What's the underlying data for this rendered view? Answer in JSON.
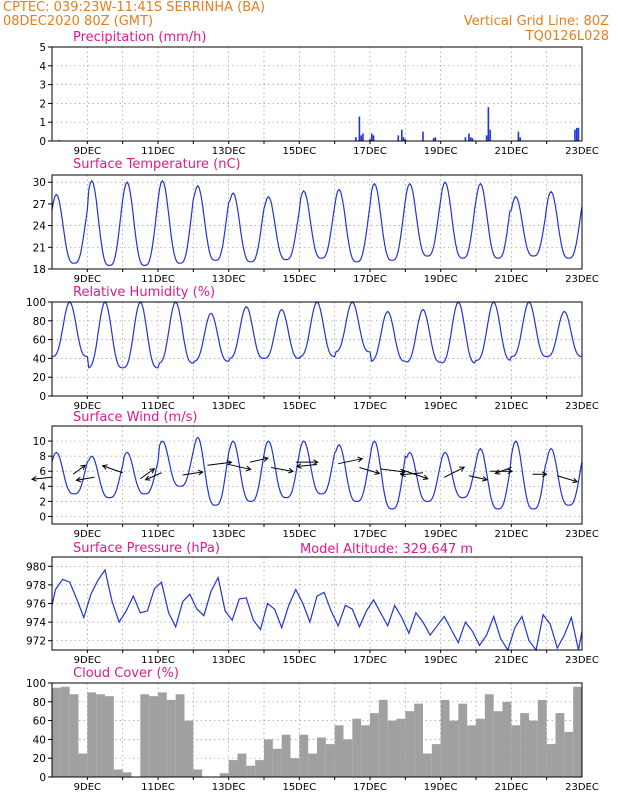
{
  "header": {
    "line1": "CPTEC:   039:23W-11:41S   SERRINHA (BA)",
    "line2": "08DEC2020 80Z (GMT)",
    "grid_note": "Vertical Grid Line: 80Z",
    "model_code": "TQ0126L028",
    "model_altitude": "Model Altitude: 329.647 m"
  },
  "colors": {
    "header": "#e87d1e",
    "panel_title": "#e0198c",
    "line": "#2233dd",
    "cloud": "#a0a0a0",
    "frame": "#000000"
  },
  "chart_data": [
    {
      "id": "precip",
      "type": "bar",
      "title": "Precipitation (mm/h)",
      "ylim": [
        0,
        5
      ],
      "yticks": [
        0,
        1,
        2,
        3,
        4,
        5
      ],
      "x_range_days": [
        8,
        23
      ],
      "x_tick_labels": [
        "9DEC",
        "11DEC",
        "13DEC",
        "15DEC",
        "17DEC",
        "19DEC",
        "21DEC",
        "23DEC"
      ],
      "x_tick_days": [
        9,
        11,
        13,
        15,
        17,
        19,
        21,
        23
      ],
      "grid": true,
      "x": [
        8.2,
        16.6,
        16.7,
        16.75,
        16.8,
        17.0,
        17.05,
        17.1,
        17.8,
        17.9,
        17.95,
        18.0,
        18.5,
        18.8,
        18.85,
        19.7,
        19.8,
        19.85,
        19.9,
        20.3,
        20.35,
        20.4,
        21.2,
        21.25,
        22.8,
        22.85,
        22.9
      ],
      "values": [
        0.05,
        0.2,
        1.3,
        0.3,
        0.4,
        0.1,
        0.4,
        0.3,
        0.3,
        0.6,
        0.2,
        0.1,
        0.5,
        0.15,
        0.2,
        0.2,
        0.4,
        0.2,
        0.15,
        0.3,
        1.8,
        0.6,
        0.5,
        0.2,
        0.6,
        0.7,
        0.7
      ]
    },
    {
      "id": "temp",
      "type": "line",
      "title": "Surface Temperature (nC)",
      "ylim": [
        18,
        31
      ],
      "yticks": [
        18,
        21,
        24,
        27,
        30
      ],
      "x_range_days": [
        8,
        23
      ],
      "x_tick_labels": [
        "9DEC",
        "11DEC",
        "13DEC",
        "15DEC",
        "17DEC",
        "19DEC",
        "21DEC",
        "23DEC"
      ],
      "x_tick_days": [
        9,
        11,
        13,
        15,
        17,
        19,
        21,
        23
      ],
      "grid": true,
      "daily_min": [
        18.8,
        18.5,
        18.5,
        18.8,
        19.2,
        19.0,
        19.3,
        19.5,
        19.0,
        19.2,
        19.8,
        19.5,
        19.5,
        19.8,
        19.5
      ],
      "daily_max": [
        28.3,
        30.2,
        30.0,
        30.2,
        29.5,
        28.5,
        28.0,
        28.8,
        29.0,
        29.8,
        29.8,
        30.0,
        29.8,
        28.0,
        28.7
      ]
    },
    {
      "id": "rh",
      "type": "line",
      "title": "Relative Humidity (%)",
      "ylim": [
        0,
        100
      ],
      "yticks": [
        0,
        20,
        40,
        60,
        80,
        100
      ],
      "x_range_days": [
        8,
        23
      ],
      "x_tick_labels": [
        "9DEC",
        "11DEC",
        "13DEC",
        "15DEC",
        "17DEC",
        "19DEC",
        "21DEC",
        "23DEC"
      ],
      "x_tick_days": [
        9,
        11,
        13,
        15,
        17,
        19,
        21,
        23
      ],
      "grid": true,
      "daily_max": [
        100,
        100,
        100,
        100,
        88,
        95,
        92,
        100,
        100,
        90,
        92,
        100,
        100,
        100,
        90
      ],
      "daily_min": [
        42,
        30,
        30,
        35,
        37,
        40,
        40,
        42,
        47,
        37,
        36,
        35,
        38,
        42,
        42
      ]
    },
    {
      "id": "wind",
      "type": "line",
      "title": "Surface Wind (m/s)",
      "ylim": [
        -1,
        12
      ],
      "yticks": [
        0,
        2,
        4,
        6,
        8,
        10
      ],
      "x_range_days": [
        8,
        23
      ],
      "x_tick_labels": [
        "9DEC",
        "11DEC",
        "13DEC",
        "15DEC",
        "17DEC",
        "19DEC",
        "21DEC",
        "23DEC"
      ],
      "x_tick_days": [
        9,
        11,
        13,
        15,
        17,
        19,
        21,
        23
      ],
      "grid": true,
      "daily_max": [
        8.5,
        8.0,
        8.5,
        10.0,
        10.5,
        10.0,
        10.0,
        10.0,
        9.5,
        10.0,
        8.5,
        8.5,
        9.0,
        10.0,
        9.0
      ],
      "daily_min": [
        3.0,
        2.5,
        3.0,
        4.0,
        1.5,
        2.0,
        2.5,
        3.0,
        2.0,
        1.0,
        2.0,
        2.5,
        1.0,
        1.0,
        1.5
      ],
      "arrow_days": [
        8.0,
        8.6,
        9.2,
        10.0,
        10.5,
        11.1,
        11.7,
        12.4,
        13.0,
        13.6,
        14.2,
        14.9,
        15.5,
        16.1,
        16.7,
        17.3,
        17.9,
        18.5,
        19.1,
        19.8,
        20.4,
        21.0,
        21.6,
        22.3
      ],
      "arrow_speed": [
        5.2,
        5.6,
        5.2,
        5.8,
        5.0,
        5.8,
        5.5,
        6.8,
        6.9,
        7.2,
        6.5,
        7.2,
        6.9,
        7.0,
        6.5,
        6.3,
        6.2,
        5.8,
        5.2,
        5.4,
        6.0,
        6.5,
        5.6,
        5.4
      ],
      "arrow_dx": [
        -20,
        12,
        -18,
        -20,
        14,
        -16,
        20,
        24,
        22,
        18,
        22,
        22,
        -20,
        24,
        20,
        24,
        26,
        -22,
        20,
        18,
        22,
        -16,
        14,
        20
      ],
      "arrow_dy": [
        2,
        -9,
        3,
        -7,
        -10,
        7,
        -3,
        -3,
        5,
        -4,
        4,
        0,
        2,
        -5,
        6,
        3,
        9,
        2,
        -10,
        4,
        0,
        6,
        0,
        6
      ]
    },
    {
      "id": "pressure",
      "type": "line",
      "title": "Surface Pressure (hPa)",
      "ylim": [
        971,
        981
      ],
      "yticks": [
        972,
        974,
        976,
        978,
        980
      ],
      "x_range_days": [
        8,
        23
      ],
      "x_tick_labels": [
        "9DEC",
        "11DEC",
        "13DEC",
        "15DEC",
        "17DEC",
        "19DEC",
        "21DEC",
        "23DEC"
      ],
      "x_tick_days": [
        9,
        11,
        13,
        15,
        17,
        19,
        21,
        23
      ],
      "grid": true,
      "x": [
        8.0,
        8.1,
        8.3,
        8.5,
        8.7,
        8.9,
        9.1,
        9.3,
        9.5,
        9.7,
        9.9,
        10.1,
        10.3,
        10.5,
        10.7,
        10.9,
        11.1,
        11.3,
        11.5,
        11.7,
        11.9,
        12.1,
        12.3,
        12.5,
        12.7,
        12.9,
        13.1,
        13.3,
        13.5,
        13.7,
        13.9,
        14.1,
        14.3,
        14.5,
        14.7,
        14.9,
        15.1,
        15.3,
        15.5,
        15.7,
        15.9,
        16.1,
        16.3,
        16.5,
        16.7,
        16.9,
        17.1,
        17.3,
        17.5,
        17.7,
        17.9,
        18.1,
        18.3,
        18.5,
        18.7,
        18.9,
        19.1,
        19.3,
        19.5,
        19.7,
        19.9,
        20.1,
        20.3,
        20.5,
        20.7,
        20.9,
        21.1,
        21.3,
        21.5,
        21.7,
        21.9,
        22.1,
        22.3,
        22.5,
        22.7,
        22.9,
        23.0
      ],
      "values": [
        975.8,
        977.5,
        978.6,
        978.3,
        976.5,
        974.5,
        977.0,
        978.5,
        979.6,
        976.2,
        974.0,
        975.2,
        976.8,
        975.0,
        975.2,
        977.6,
        978.3,
        975.0,
        973.5,
        976.2,
        977.0,
        975.4,
        974.7,
        977.3,
        978.8,
        975.2,
        974.2,
        976.5,
        976.6,
        974.2,
        973.2,
        976.0,
        975.4,
        973.4,
        975.8,
        977.5,
        976.0,
        974.0,
        976.8,
        977.2,
        975.2,
        973.6,
        975.8,
        975.4,
        973.5,
        975.2,
        976.4,
        975.0,
        973.6,
        975.8,
        974.5,
        972.8,
        975.0,
        974.0,
        972.6,
        973.6,
        974.6,
        973.2,
        971.8,
        974.0,
        973.0,
        971.5,
        972.6,
        974.6,
        972.2,
        970.8,
        973.4,
        974.6,
        972.0,
        971.0,
        974.8,
        973.8,
        971.2,
        972.6,
        974.5,
        971.0,
        973.0
      ]
    },
    {
      "id": "cloud",
      "type": "bar",
      "title": "Cloud Cover (%)",
      "ylim": [
        0,
        100
      ],
      "yticks": [
        0,
        20,
        40,
        60,
        80,
        100
      ],
      "x_range_days": [
        8,
        23
      ],
      "x_tick_labels": [
        "9DEC",
        "11DEC",
        "13DEC",
        "15DEC",
        "17DEC",
        "19DEC",
        "21DEC",
        "23DEC"
      ],
      "x_tick_days": [
        9,
        11,
        13,
        15,
        17,
        19,
        21,
        23
      ],
      "grid": true,
      "x": [
        8.0,
        8.25,
        8.5,
        8.75,
        9.0,
        9.25,
        9.5,
        9.75,
        10.0,
        10.25,
        10.5,
        10.75,
        11.0,
        11.25,
        11.5,
        11.75,
        12.0,
        12.25,
        12.5,
        12.75,
        13.0,
        13.25,
        13.5,
        13.75,
        14.0,
        14.25,
        14.5,
        14.75,
        15.0,
        15.25,
        15.5,
        15.75,
        16.0,
        16.25,
        16.5,
        16.75,
        17.0,
        17.25,
        17.5,
        17.75,
        18.0,
        18.25,
        18.5,
        18.75,
        19.0,
        19.25,
        19.5,
        19.75,
        20.0,
        20.25,
        20.5,
        20.75,
        21.0,
        21.25,
        21.5,
        21.75,
        22.0,
        22.25,
        22.5,
        22.75
      ],
      "values": [
        95,
        96,
        88,
        25,
        90,
        88,
        86,
        8,
        5,
        0,
        88,
        86,
        90,
        82,
        88,
        60,
        8,
        0,
        0,
        4,
        18,
        25,
        12,
        18,
        40,
        30,
        45,
        20,
        45,
        25,
        42,
        35,
        55,
        40,
        62,
        55,
        68,
        82,
        60,
        62,
        70,
        78,
        25,
        35,
        82,
        60,
        78,
        55,
        62,
        88,
        70,
        80,
        55,
        68,
        60,
        82,
        35,
        68,
        48,
        96
      ]
    }
  ]
}
